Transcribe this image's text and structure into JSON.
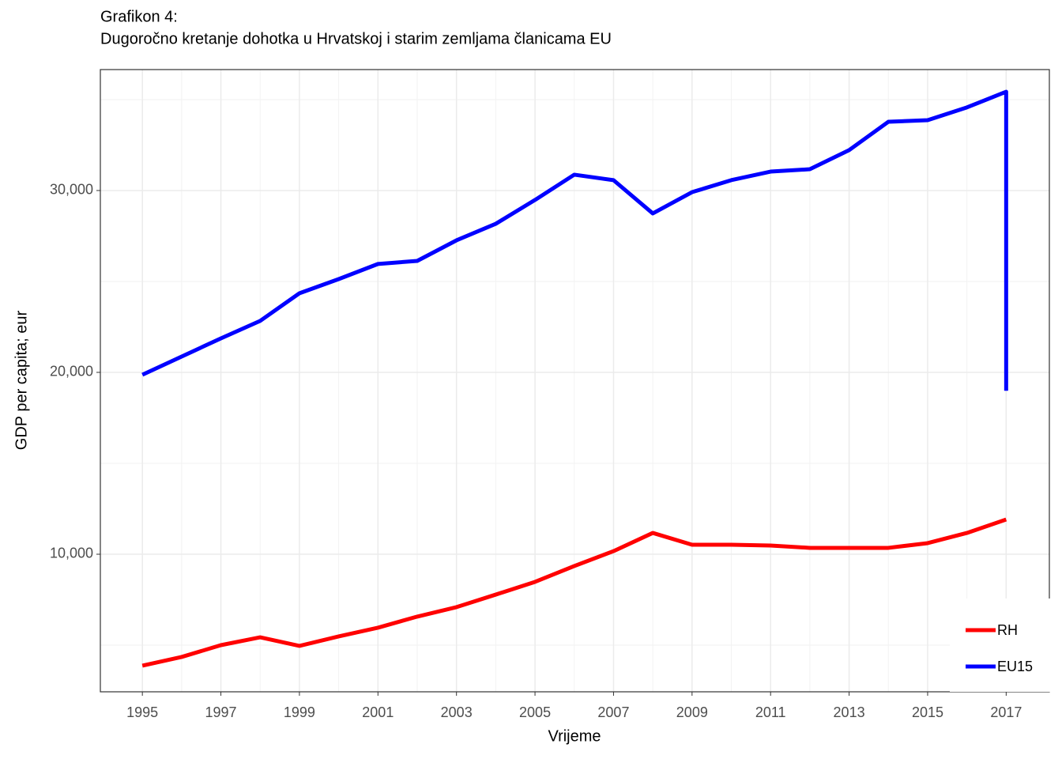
{
  "chart_data": {
    "type": "line",
    "title": "Grafikon 4:",
    "subtitle": "Dugoročno kretanje dohotka u Hrvatskoj i starim zemljama članicama EU",
    "x_label": "Vrijeme",
    "y_label": "GDP per capita; eur",
    "x": [
      1995,
      1996,
      1997,
      1998,
      1999,
      2000,
      2001,
      2002,
      2003,
      2004,
      2005,
      2006,
      2007,
      2008,
      2009,
      2010,
      2011,
      2012,
      2013,
      2014,
      2015,
      2016,
      2017,
      2017
    ],
    "series": [
      {
        "name": "RH",
        "color": "#ff0000",
        "values": [
          3870,
          4350,
          5000,
          5430,
          4960,
          5480,
          5960,
          6570,
          7090,
          7780,
          8480,
          9350,
          10170,
          11170,
          10520,
          10520,
          10480,
          10350,
          10350,
          10350,
          10610,
          11170,
          11910,
          null
        ]
      },
      {
        "name": "EU15",
        "color": "#0000ff",
        "values": [
          19870,
          20870,
          21870,
          22830,
          24350,
          25130,
          25960,
          26130,
          27260,
          28170,
          29480,
          30870,
          30570,
          28740,
          29910,
          30570,
          31040,
          31170,
          32220,
          33780,
          33870,
          34570,
          35430,
          18990
        ]
      }
    ],
    "xlim": [
      1993.93,
      2018.1
    ],
    "ylim": [
      2435,
      36650
    ],
    "xticks": [
      1995,
      1997,
      1999,
      2001,
      2003,
      2005,
      2007,
      2009,
      2011,
      2013,
      2015,
      2017
    ],
    "yticks": [
      {
        "value": 10000,
        "label": "10,000"
      },
      {
        "value": 20000,
        "label": "20,000"
      },
      {
        "value": 30000,
        "label": "30,000"
      }
    ],
    "grid": true,
    "legend_position": "bottom-right"
  }
}
